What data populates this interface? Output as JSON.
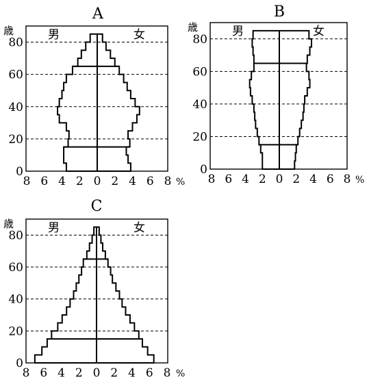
{
  "units": {
    "age": "歳",
    "percent": "%"
  },
  "sex_labels": {
    "male": "男",
    "female": "女"
  },
  "chart_data": [
    {
      "type": "bar",
      "title": "A",
      "orientation": "population-pyramid",
      "age_ticks": [
        0,
        20,
        40,
        60,
        80
      ],
      "percent_ticks": [
        8,
        6,
        4,
        2,
        0,
        2,
        4,
        6,
        8
      ],
      "xlim": [
        -8,
        8
      ],
      "ylim": [
        0,
        90
      ],
      "dashed_gridlines_at": [
        20,
        40,
        60,
        80
      ],
      "divider_lines_at": [
        15,
        65
      ],
      "age_groups": [
        "0-4",
        "5-9",
        "10-14",
        "15-19",
        "20-24",
        "25-29",
        "30-34",
        "35-39",
        "40-44",
        "45-49",
        "50-54",
        "55-59",
        "60-64",
        "65-69",
        "70-74",
        "75-79",
        "80-84"
      ],
      "series": [
        {
          "name": "男",
          "values": [
            3.5,
            3.8,
            3.8,
            3.3,
            3.2,
            3.5,
            4.3,
            4.5,
            4.3,
            4.0,
            3.8,
            3.5,
            2.8,
            2.2,
            1.8,
            1.3,
            0.8
          ]
        },
        {
          "name": "女",
          "values": [
            3.8,
            3.5,
            3.3,
            3.7,
            3.5,
            4.0,
            4.5,
            4.8,
            4.3,
            3.8,
            3.4,
            3.0,
            2.5,
            2.0,
            1.5,
            1.0,
            0.6
          ]
        }
      ]
    },
    {
      "type": "bar",
      "title": "B",
      "orientation": "population-pyramid",
      "age_ticks": [
        0,
        20,
        40,
        60,
        80
      ],
      "percent_ticks": [
        8,
        6,
        4,
        2,
        0,
        2,
        4,
        6,
        8
      ],
      "xlim": [
        -8,
        8
      ],
      "ylim": [
        0,
        90
      ],
      "dashed_gridlines_at": [
        20,
        40,
        60,
        80
      ],
      "divider_lines_at": [
        15,
        65
      ],
      "age_groups": [
        "0-4",
        "5-9",
        "10-14",
        "15-19",
        "20-24",
        "25-29",
        "30-34",
        "35-39",
        "40-44",
        "45-49",
        "50-54",
        "55-59",
        "60-64",
        "65-69",
        "70-74",
        "75-79",
        "80-84"
      ],
      "series": [
        {
          "name": "男",
          "values": [
            2.0,
            2.0,
            2.2,
            2.4,
            2.6,
            2.8,
            2.9,
            3.0,
            3.2,
            3.4,
            3.5,
            3.3,
            3.0,
            3.0,
            3.1,
            3.2,
            3.1
          ]
        },
        {
          "name": "女",
          "values": [
            1.8,
            1.9,
            2.0,
            2.2,
            2.4,
            2.6,
            2.8,
            2.9,
            3.0,
            3.3,
            3.6,
            3.5,
            3.2,
            3.3,
            3.6,
            3.8,
            3.5
          ]
        }
      ]
    },
    {
      "type": "bar",
      "title": "C",
      "orientation": "population-pyramid",
      "age_ticks": [
        0,
        20,
        40,
        60,
        80
      ],
      "percent_ticks": [
        8,
        6,
        4,
        2,
        0,
        2,
        4,
        6,
        8
      ],
      "xlim": [
        -8,
        8
      ],
      "ylim": [
        0,
        90
      ],
      "dashed_gridlines_at": [
        20,
        40,
        60,
        80
      ],
      "divider_lines_at": [
        15,
        65
      ],
      "age_groups": [
        "0-4",
        "5-9",
        "10-14",
        "15-19",
        "20-24",
        "25-29",
        "30-34",
        "35-39",
        "40-44",
        "45-49",
        "50-54",
        "55-59",
        "60-64",
        "65-69",
        "70-74",
        "75-79",
        "80-84"
      ],
      "series": [
        {
          "name": "男",
          "values": [
            7.0,
            6.2,
            5.6,
            5.1,
            4.4,
            3.9,
            3.4,
            3.0,
            2.6,
            2.3,
            2.0,
            1.7,
            1.5,
            1.1,
            0.8,
            0.5,
            0.3
          ]
        },
        {
          "name": "女",
          "values": [
            6.5,
            5.8,
            5.2,
            4.8,
            4.3,
            3.8,
            3.3,
            2.9,
            2.6,
            2.2,
            1.8,
            1.6,
            1.3,
            1.0,
            0.7,
            0.5,
            0.3
          ]
        }
      ]
    }
  ]
}
